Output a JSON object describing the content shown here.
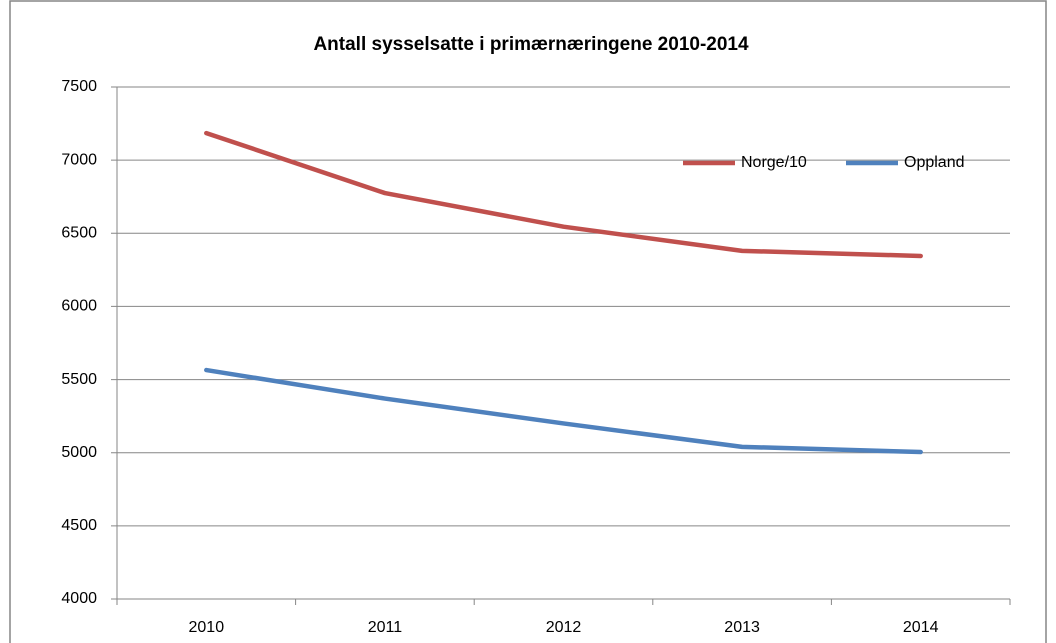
{
  "chart_data": {
    "type": "line",
    "title": "Antall sysselsatte i primærnæringene 2010-2014",
    "categories": [
      "2010",
      "2011",
      "2012",
      "2013",
      "2014"
    ],
    "series": [
      {
        "name": "Norge/10",
        "color": "#c0504d",
        "values": [
          7185,
          6775,
          6545,
          6380,
          6345
        ]
      },
      {
        "name": "Oppland",
        "color": "#4f81bd",
        "values": [
          5565,
          5370,
          5200,
          5040,
          5005
        ]
      }
    ],
    "ylim": [
      4000,
      7500
    ],
    "yticks": [
      4000,
      4500,
      5000,
      5500,
      6000,
      6500,
      7000,
      7500
    ],
    "grid": true,
    "legend": "upper right"
  }
}
